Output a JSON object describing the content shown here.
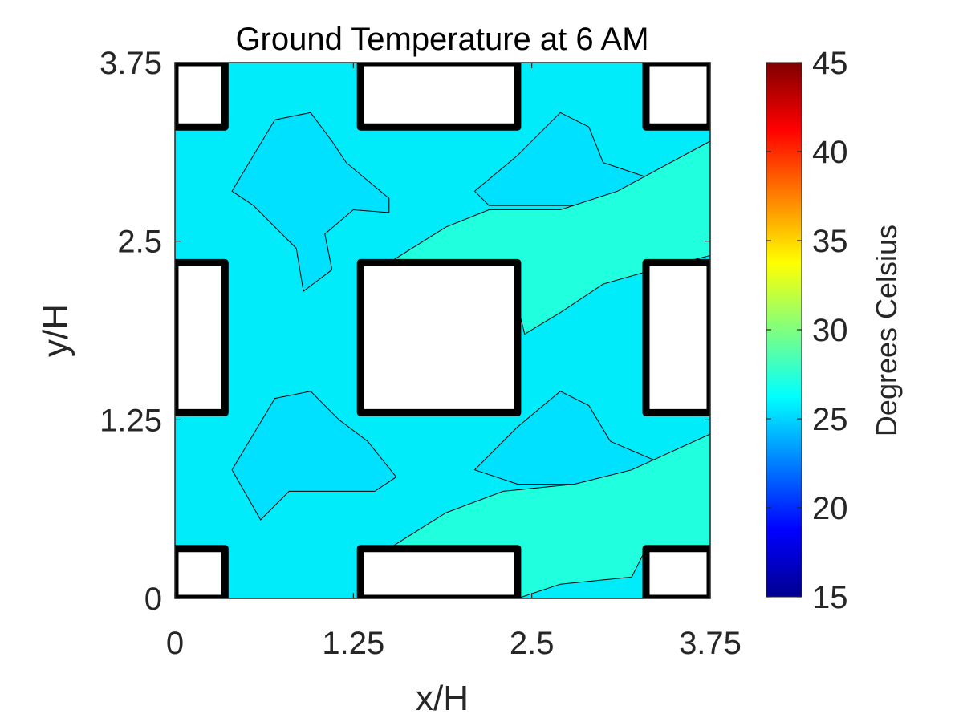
{
  "chart_data": {
    "type": "heatmap",
    "title": "Ground Temperature at 6 AM",
    "xlabel": "x/H",
    "ylabel": "y/H",
    "xlim": [
      0,
      3.75
    ],
    "ylim": [
      0,
      3.75
    ],
    "xticks": [
      "0",
      "1.25",
      "2.5",
      "3.75"
    ],
    "yticks": [
      "0",
      "1.25",
      "2.5",
      "3.75"
    ],
    "colorbar": {
      "label": "Degrees Celsius",
      "range": [
        15,
        45
      ],
      "ticks": [
        "15",
        "20",
        "25",
        "30",
        "35",
        "40",
        "45"
      ],
      "colormap": "jet"
    },
    "background_level_celsius": 26,
    "buildings": [
      {
        "x": [
          0,
          0.35
        ],
        "y": [
          0,
          0.35
        ]
      },
      {
        "x": [
          1.3,
          2.4
        ],
        "y": [
          0,
          0.35
        ]
      },
      {
        "x": [
          3.3,
          3.75
        ],
        "y": [
          0,
          0.35
        ]
      },
      {
        "x": [
          0,
          0.35
        ],
        "y": [
          1.3,
          2.35
        ]
      },
      {
        "x": [
          1.3,
          2.4
        ],
        "y": [
          1.3,
          2.35
        ]
      },
      {
        "x": [
          3.3,
          3.75
        ],
        "y": [
          1.3,
          2.35
        ]
      },
      {
        "x": [
          0,
          0.35
        ],
        "y": [
          3.3,
          3.75
        ]
      },
      {
        "x": [
          1.3,
          2.4
        ],
        "y": [
          3.3,
          3.75
        ]
      },
      {
        "x": [
          3.3,
          3.75
        ],
        "y": [
          3.3,
          3.75
        ]
      }
    ],
    "regions": [
      {
        "level_celsius": 25,
        "color": "#00e0ff",
        "points": [
          [
            0.4,
            2.85
          ],
          [
            0.7,
            3.35
          ],
          [
            0.95,
            3.4
          ],
          [
            1.1,
            3.2
          ],
          [
            1.2,
            3.05
          ],
          [
            1.5,
            2.8
          ],
          [
            1.5,
            2.7
          ],
          [
            1.25,
            2.72
          ],
          [
            1.05,
            2.55
          ],
          [
            1.1,
            2.3
          ],
          [
            0.9,
            2.15
          ],
          [
            0.85,
            2.45
          ],
          [
            0.55,
            2.75
          ],
          [
            0.4,
            2.85
          ]
        ]
      },
      {
        "level_celsius": 25,
        "color": "#00e0ff",
        "points": [
          [
            0.4,
            0.9
          ],
          [
            0.7,
            1.4
          ],
          [
            0.95,
            1.45
          ],
          [
            1.15,
            1.25
          ],
          [
            1.35,
            1.1
          ],
          [
            1.55,
            0.85
          ],
          [
            1.4,
            0.75
          ],
          [
            0.8,
            0.75
          ],
          [
            0.6,
            0.55
          ],
          [
            0.4,
            0.9
          ]
        ]
      },
      {
        "level_celsius": 25,
        "color": "#00e0ff",
        "points": [
          [
            2.1,
            2.85
          ],
          [
            2.4,
            3.1
          ],
          [
            2.7,
            3.4
          ],
          [
            2.9,
            3.3
          ],
          [
            3.0,
            3.05
          ],
          [
            3.3,
            2.95
          ],
          [
            3.1,
            2.8
          ],
          [
            2.8,
            2.75
          ],
          [
            2.5,
            2.75
          ],
          [
            2.2,
            2.75
          ],
          [
            2.1,
            2.85
          ]
        ]
      },
      {
        "level_celsius": 25,
        "color": "#00e0ff",
        "points": [
          [
            2.1,
            0.9
          ],
          [
            2.4,
            1.2
          ],
          [
            2.7,
            1.45
          ],
          [
            2.9,
            1.35
          ],
          [
            3.05,
            1.1
          ],
          [
            3.4,
            0.95
          ],
          [
            3.2,
            0.85
          ],
          [
            2.8,
            0.8
          ],
          [
            2.4,
            0.8
          ],
          [
            2.1,
            0.9
          ]
        ]
      },
      {
        "level_celsius": 27,
        "color": "#20ffde",
        "points": [
          [
            1.5,
            2.35
          ],
          [
            1.9,
            2.6
          ],
          [
            2.2,
            2.72
          ],
          [
            2.7,
            2.72
          ],
          [
            3.1,
            2.85
          ],
          [
            3.75,
            3.2
          ],
          [
            3.75,
            2.4
          ],
          [
            3.35,
            2.3
          ],
          [
            3.0,
            2.2
          ],
          [
            2.7,
            2.0
          ],
          [
            2.45,
            1.85
          ],
          [
            2.4,
            2.05
          ],
          [
            2.1,
            2.3
          ],
          [
            1.5,
            2.35
          ]
        ]
      },
      {
        "level_celsius": 27,
        "color": "#20ffde",
        "points": [
          [
            1.5,
            0.35
          ],
          [
            1.9,
            0.6
          ],
          [
            2.3,
            0.75
          ],
          [
            2.8,
            0.8
          ],
          [
            3.2,
            0.9
          ],
          [
            3.75,
            1.15
          ],
          [
            3.75,
            0.35
          ],
          [
            3.3,
            0.35
          ],
          [
            3.2,
            0.15
          ],
          [
            2.7,
            0.1
          ],
          [
            2.4,
            0.0
          ],
          [
            2.4,
            0.35
          ],
          [
            1.5,
            0.35
          ]
        ]
      }
    ]
  }
}
